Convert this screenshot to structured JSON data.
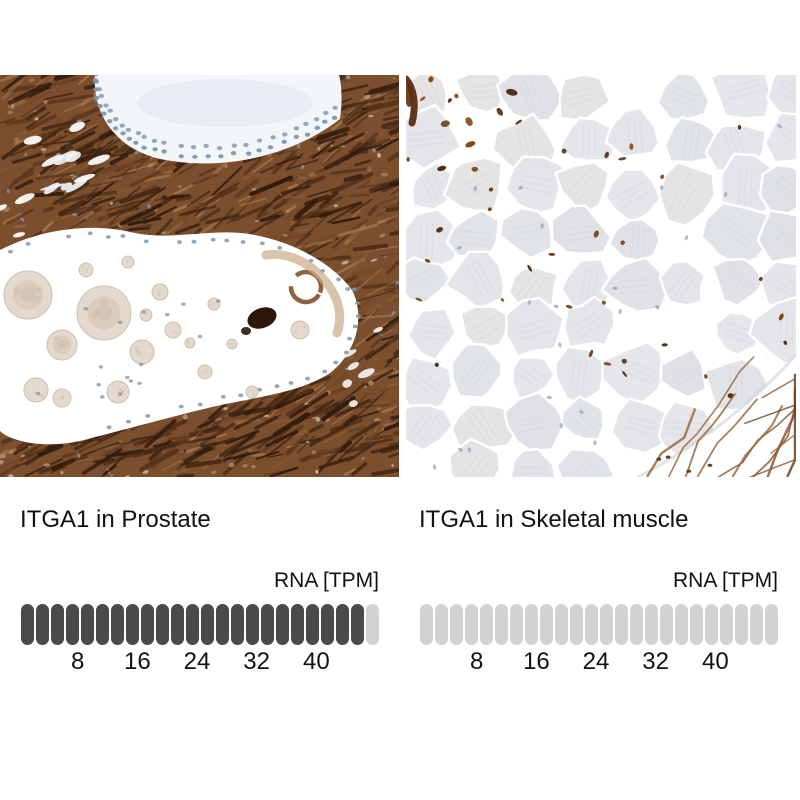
{
  "figure": {
    "background": "#ffffff",
    "text_color": "#111111"
  },
  "panels": [
    {
      "title": "ITGA1 in Prostate",
      "image": {
        "type": "immunohistochemistry micrograph",
        "description": "Human prostate tissue with strong brown ITGA1 staining of fibromuscular stroma surrounding gland lumens that contain pale tan secretions (corpora amylacea) and scattered blue-gray nuclei",
        "palette": {
          "stroma_browns": [
            "#2f1a0d",
            "#3f2412",
            "#57331c",
            "#714424",
            "#8c5a33",
            "#a97a50"
          ],
          "lumen": "#ffffff",
          "secretion": "#e2d8cb",
          "secretion_edge": "#cdbdab",
          "nuclei_blue": "#7e96ad",
          "dense_stain": "#2f1708",
          "gland_haze": "#e3eaf1"
        }
      }
    },
    {
      "title": "ITGA1 in Skeletal muscle",
      "image": {
        "type": "immunohistochemistry micrograph",
        "description": "Human skeletal muscle with pale blue-gray fibers, largely negative for ITGA1; small brown-stained capillaries between fibers and white fascia with thin brown fibrils in the lower right corner",
        "palette": {
          "fiber": "#e2e4e8",
          "fiber_gap": "#ffffff",
          "capillary_brown": "#5b2d0e",
          "nuclei_blue": "#8ba2b8",
          "fascia_fiber_brown": "#8a5530"
        }
      }
    }
  ],
  "chart_data": [
    {
      "type": "pictogram-bar",
      "title": "ITGA1 in Prostate",
      "unit": "RNA [TPM]",
      "pills_total": 24,
      "pills_filled": 23,
      "tpm_per_pill": 2,
      "value_tpm": 46,
      "axis_ticks": [
        8,
        16,
        24,
        32,
        40
      ],
      "axis_range": [
        0,
        48
      ],
      "filled_color": "#4a4a4a",
      "empty_color": "#d2d2d2",
      "legend_position": "top-right",
      "grid": false
    },
    {
      "type": "pictogram-bar",
      "title": "ITGA1 in Skeletal muscle",
      "unit": "RNA [TPM]",
      "pills_total": 24,
      "pills_filled": 0,
      "tpm_per_pill": 2,
      "value_tpm": 0,
      "axis_ticks": [
        8,
        16,
        24,
        32,
        40
      ],
      "axis_range": [
        0,
        48
      ],
      "filled_color": "#4a4a4a",
      "empty_color": "#d2d2d2",
      "legend_position": "top-right",
      "grid": false
    }
  ]
}
